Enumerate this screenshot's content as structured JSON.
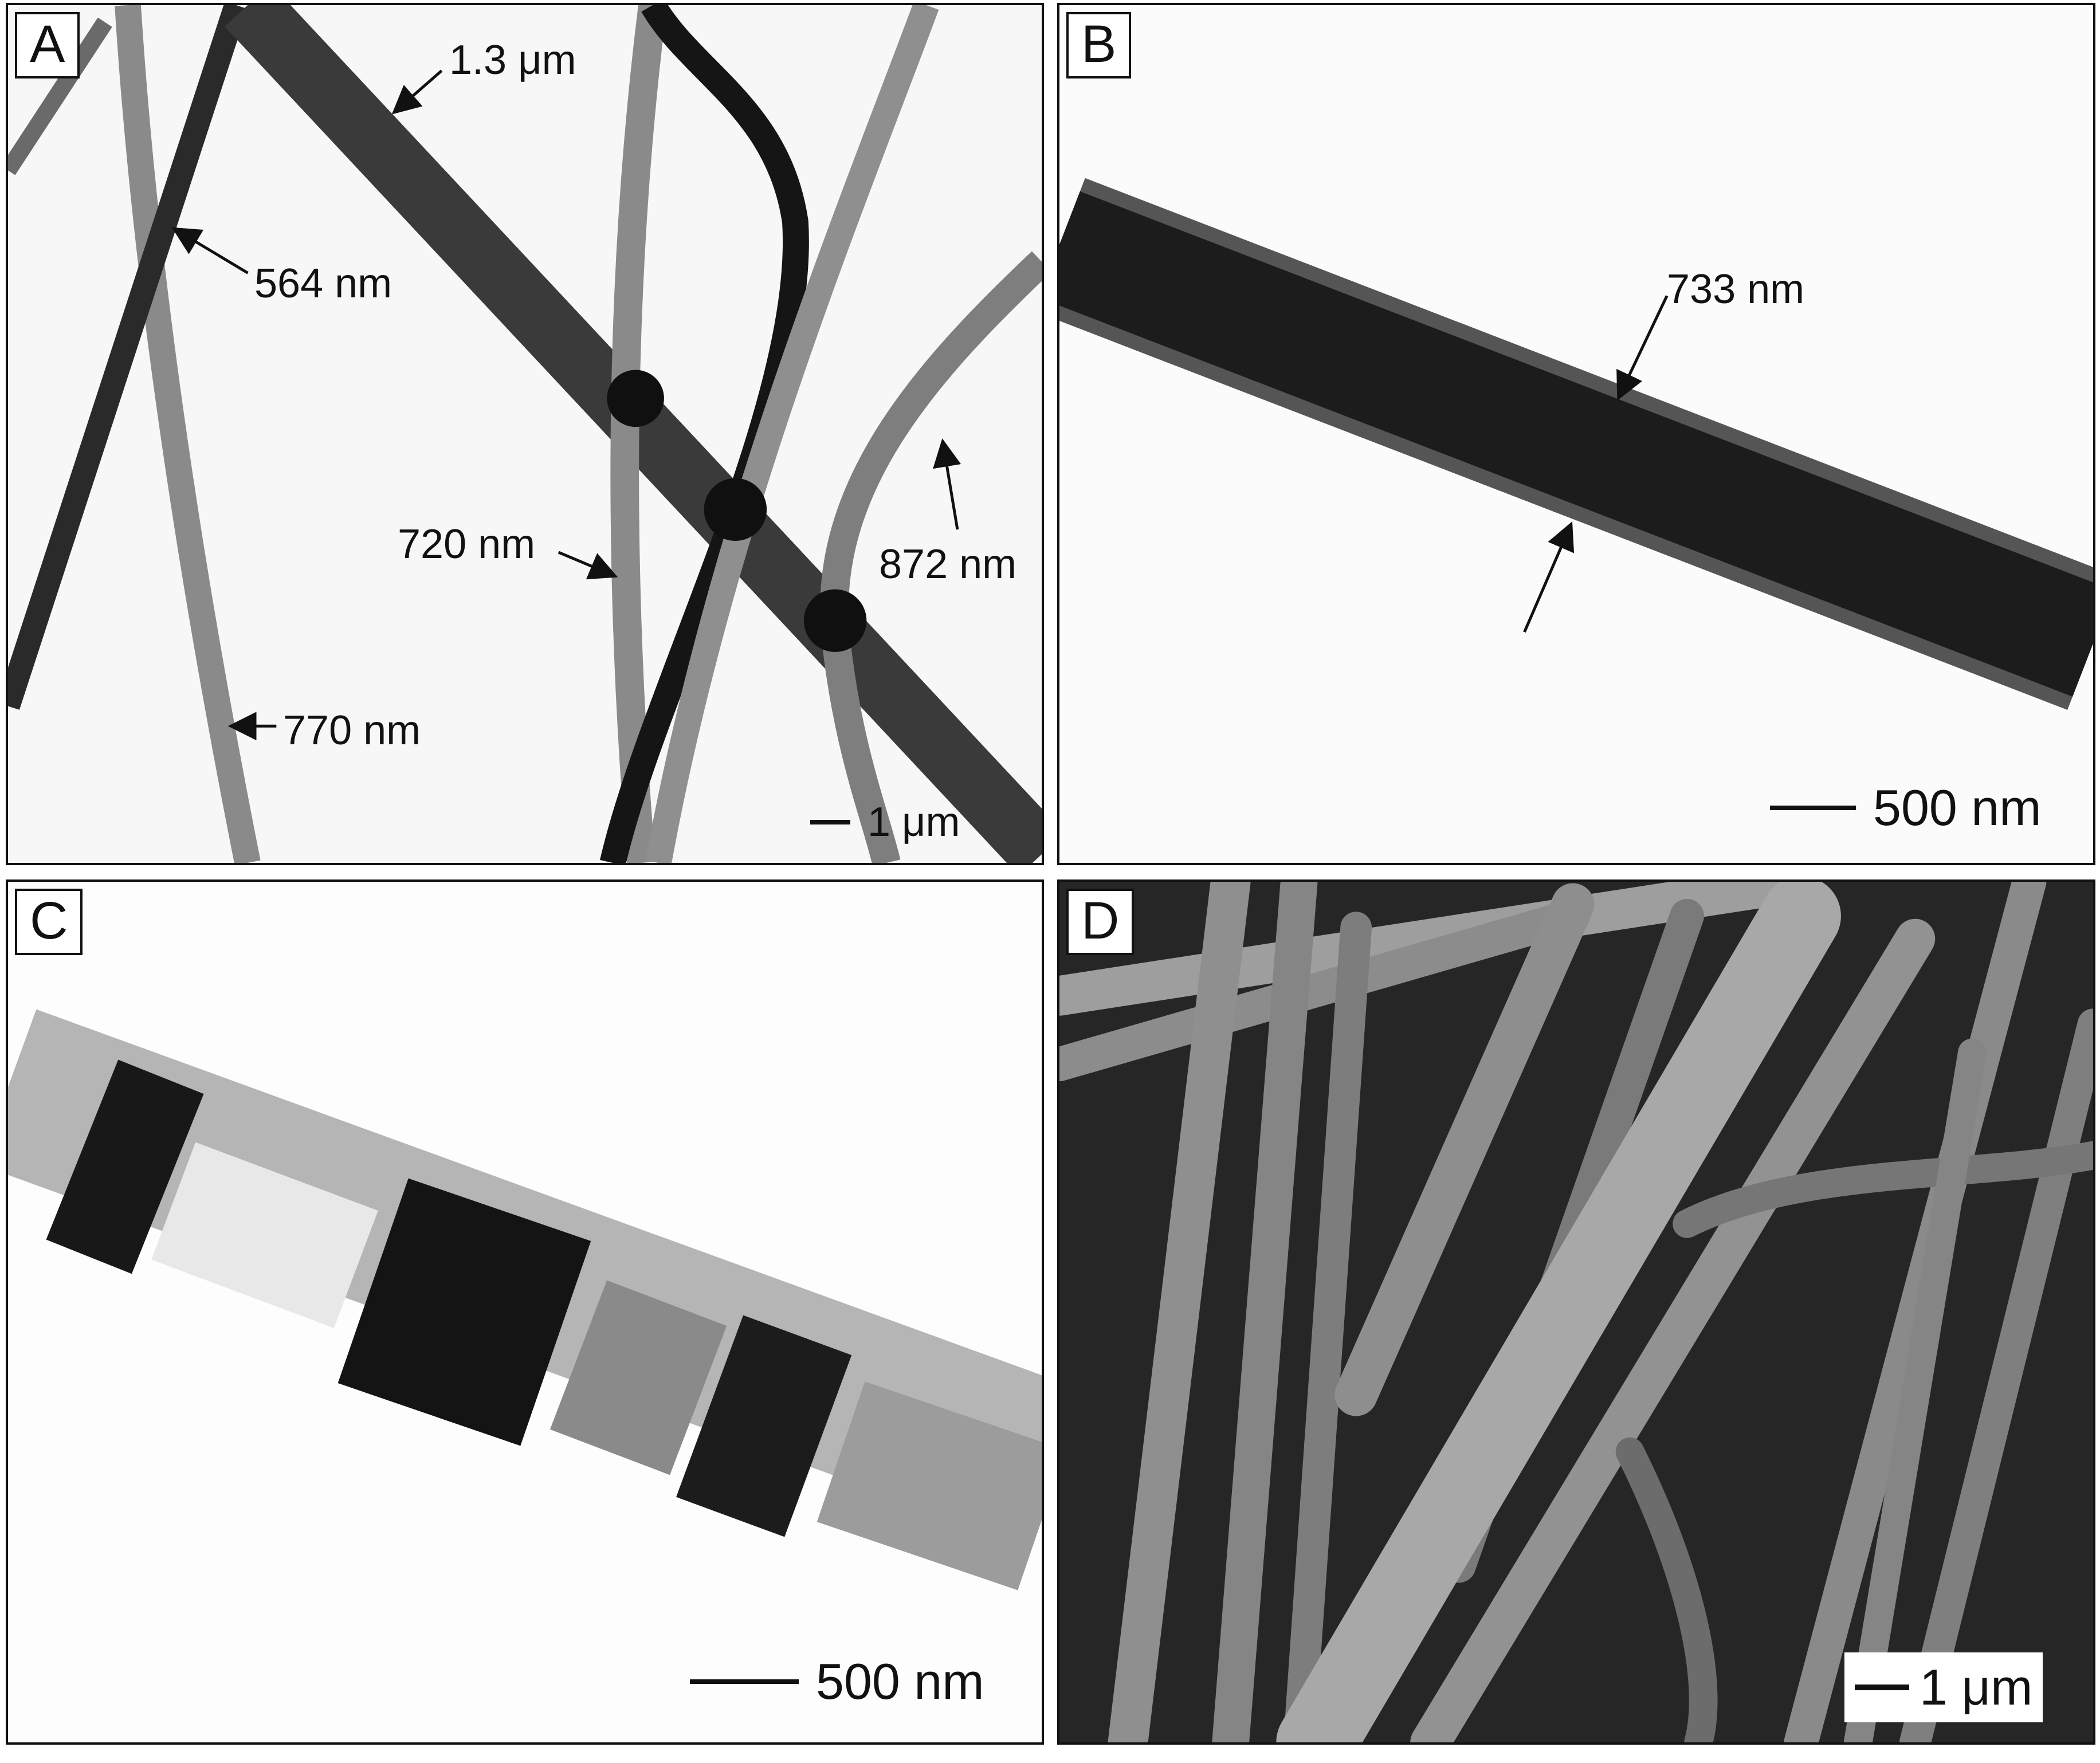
{
  "panels": {
    "a": {
      "letter": "A",
      "annotations": [
        "1.3 μm",
        "564 nm",
        "720 nm",
        "872 nm",
        "770 nm"
      ],
      "scale_bar": "1 μm"
    },
    "b": {
      "letter": "B",
      "annotations": [
        "733 nm"
      ],
      "scale_bar": "500 nm"
    },
    "c": {
      "letter": "C",
      "scale_bar": "500 nm"
    },
    "d": {
      "letter": "D",
      "scale_bar": "1 μm"
    }
  },
  "colors": {
    "tem_background": "#fafafa",
    "fiber_dark": "#1a1a1a",
    "fiber_gray": "#7a7a7a",
    "sem_background": "#2a2a2a",
    "sem_fiber": "#9a9a9a"
  }
}
